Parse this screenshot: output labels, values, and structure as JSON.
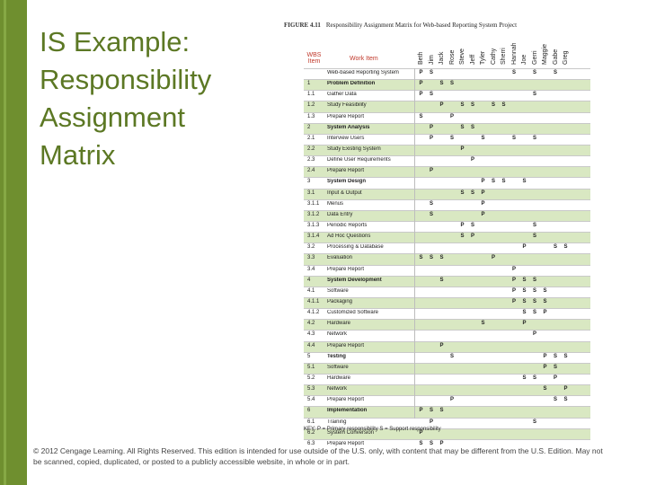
{
  "slide": {
    "title_lines": [
      "IS Example:",
      "Responsibility",
      "Assignment",
      "Matrix"
    ],
    "copyright": "© 2012 Cengage Learning. All Rights Reserved. This edition is intended for use outside of the U.S. only, with content that may be different from the U.S. Edition. May not be scanned, copied, duplicated, or posted to a publicly accessible website, in whole or in part."
  },
  "figure": {
    "label": "FIGURE 4.11",
    "caption": "Responsibility Assignment Matrix for Web-based Reporting System Project",
    "header_wbs": "WBS Item",
    "header_work": "Work Item",
    "people": [
      "Beth",
      "Jim",
      "Jack",
      "Rose",
      "Steve",
      "Jeff",
      "Tyler",
      "Cathy",
      "Sherri",
      "Hannah",
      "Joe",
      "Gerri",
      "Maggie",
      "Gabe",
      "Greg"
    ],
    "rows": [
      {
        "wbs": "",
        "item": "Web-based Reporting System",
        "bold": false,
        "alt": false,
        "cells": {
          "0": "P",
          "1": "S",
          "9": "S",
          "11": "S",
          "13": "S"
        }
      },
      {
        "wbs": "1",
        "item": "Problem Definition",
        "bold": true,
        "alt": true,
        "cells": {
          "0": "P",
          "2": "S",
          "3": "S"
        }
      },
      {
        "wbs": "1.1",
        "item": "Gather Data",
        "bold": false,
        "alt": false,
        "cells": {
          "0": "P",
          "1": "S",
          "11": "S"
        }
      },
      {
        "wbs": "1.2",
        "item": "Study Feasibility",
        "bold": false,
        "alt": true,
        "cells": {
          "2": "P",
          "4": "S",
          "5": "S",
          "7": "S",
          "8": "S"
        }
      },
      {
        "wbs": "1.3",
        "item": "Prepare Report",
        "bold": false,
        "alt": false,
        "cells": {
          "0": "S",
          "3": "P"
        }
      },
      {
        "wbs": "2",
        "item": "System Analysis",
        "bold": true,
        "alt": true,
        "cells": {
          "1": "P",
          "4": "S",
          "5": "S"
        }
      },
      {
        "wbs": "2.1",
        "item": "Interview Users",
        "bold": false,
        "alt": false,
        "cells": {
          "1": "P",
          "3": "S",
          "6": "S",
          "9": "S",
          "11": "S"
        }
      },
      {
        "wbs": "2.2",
        "item": "Study Existing System",
        "bold": false,
        "alt": true,
        "cells": {
          "4": "P"
        }
      },
      {
        "wbs": "2.3",
        "item": "Define User Requirements",
        "bold": false,
        "alt": false,
        "cells": {
          "5": "P"
        }
      },
      {
        "wbs": "2.4",
        "item": "Prepare Report",
        "bold": false,
        "alt": true,
        "cells": {
          "1": "P"
        }
      },
      {
        "wbs": "3",
        "item": "System Design",
        "bold": true,
        "alt": false,
        "cells": {
          "6": "P",
          "7": "S",
          "8": "S",
          "10": "S"
        }
      },
      {
        "wbs": "3.1",
        "item": "Input & Output",
        "bold": false,
        "alt": true,
        "cells": {
          "4": "S",
          "5": "S",
          "6": "P"
        }
      },
      {
        "wbs": "3.1.1",
        "item": "Menus",
        "bold": false,
        "alt": false,
        "cells": {
          "1": "S",
          "6": "P"
        }
      },
      {
        "wbs": "3.1.2",
        "item": "Data Entry",
        "bold": false,
        "alt": true,
        "cells": {
          "1": "S",
          "6": "P"
        }
      },
      {
        "wbs": "3.1.3",
        "item": "Periodic Reports",
        "bold": false,
        "alt": false,
        "cells": {
          "4": "P",
          "5": "S",
          "11": "S"
        }
      },
      {
        "wbs": "3.1.4",
        "item": "Ad Hoc Questions",
        "bold": false,
        "alt": true,
        "cells": {
          "4": "S",
          "5": "P",
          "11": "S"
        }
      },
      {
        "wbs": "3.2",
        "item": "Processing & Database",
        "bold": false,
        "alt": false,
        "cells": {
          "10": "P",
          "13": "S",
          "14": "S"
        }
      },
      {
        "wbs": "3.3",
        "item": "Evaluation",
        "bold": false,
        "alt": true,
        "cells": {
          "0": "S",
          "1": "S",
          "2": "S",
          "7": "P"
        }
      },
      {
        "wbs": "3.4",
        "item": "Prepare Report",
        "bold": false,
        "alt": false,
        "cells": {
          "9": "P"
        }
      },
      {
        "wbs": "4",
        "item": "System Development",
        "bold": true,
        "alt": true,
        "cells": {
          "2": "S",
          "9": "P",
          "10": "S",
          "11": "S"
        }
      },
      {
        "wbs": "4.1",
        "item": "Software",
        "bold": false,
        "alt": false,
        "cells": {
          "9": "P",
          "10": "S",
          "11": "S",
          "12": "S"
        }
      },
      {
        "wbs": "4.1.1",
        "item": "Packaging",
        "bold": false,
        "alt": true,
        "cells": {
          "9": "P",
          "10": "S",
          "11": "S",
          "12": "S"
        }
      },
      {
        "wbs": "4.1.2",
        "item": "Customized Software",
        "bold": false,
        "alt": false,
        "cells": {
          "10": "S",
          "11": "S",
          "12": "P"
        }
      },
      {
        "wbs": "4.2",
        "item": "Hardware",
        "bold": false,
        "alt": true,
        "cells": {
          "6": "S",
          "10": "P"
        }
      },
      {
        "wbs": "4.3",
        "item": "Network",
        "bold": false,
        "alt": false,
        "cells": {
          "11": "P"
        }
      },
      {
        "wbs": "4.4",
        "item": "Prepare Report",
        "bold": false,
        "alt": true,
        "cells": {
          "2": "P"
        }
      },
      {
        "wbs": "5",
        "item": "Testing",
        "bold": true,
        "alt": false,
        "cells": {
          "3": "S",
          "12": "P",
          "13": "S",
          "14": "S"
        }
      },
      {
        "wbs": "5.1",
        "item": "Software",
        "bold": false,
        "alt": true,
        "cells": {
          "12": "P",
          "13": "S"
        }
      },
      {
        "wbs": "5.2",
        "item": "Hardware",
        "bold": false,
        "alt": false,
        "cells": {
          "10": "S",
          "11": "S",
          "13": "P"
        }
      },
      {
        "wbs": "5.3",
        "item": "Network",
        "bold": false,
        "alt": true,
        "cells": {
          "12": "S",
          "14": "P"
        }
      },
      {
        "wbs": "5.4",
        "item": "Prepare Report",
        "bold": false,
        "alt": false,
        "cells": {
          "3": "P",
          "13": "S",
          "14": "S"
        }
      },
      {
        "wbs": "6",
        "item": "Implementation",
        "bold": true,
        "alt": true,
        "cells": {
          "0": "P",
          "1": "S",
          "2": "S"
        }
      },
      {
        "wbs": "6.1",
        "item": "Training",
        "bold": false,
        "alt": false,
        "cells": {
          "1": "P",
          "11": "S"
        }
      },
      {
        "wbs": "6.2",
        "item": "System Conversion",
        "bold": false,
        "alt": true,
        "cells": {
          "0": "P"
        }
      },
      {
        "wbs": "6.3",
        "item": "Prepare Report",
        "bold": false,
        "alt": false,
        "cells": {
          "0": "S",
          "1": "S",
          "2": "P"
        }
      }
    ],
    "key": "KEY: P = Primary responsibility   S = Support responsibility"
  }
}
